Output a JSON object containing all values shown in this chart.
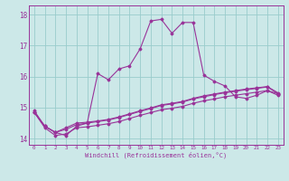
{
  "xlabel": "Windchill (Refroidissement éolien,°C)",
  "x_ticks": [
    "0",
    "1",
    "2",
    "3",
    "4",
    "5",
    "6",
    "7",
    "8",
    "9",
    "10",
    "11",
    "12",
    "13",
    "14",
    "15",
    "16",
    "17",
    "18",
    "19",
    "20",
    "21",
    "22",
    "23"
  ],
  "ylim": [
    13.8,
    18.3
  ],
  "yticks": [
    14,
    15,
    16,
    17,
    18
  ],
  "bg_color": "#cce8e8",
  "grid_color": "#99cccc",
  "line_color": "#993399",
  "series1": [
    14.9,
    14.4,
    14.2,
    14.1,
    14.4,
    14.5,
    16.1,
    15.9,
    16.25,
    16.35,
    16.9,
    17.8,
    17.85,
    17.4,
    17.75,
    17.75,
    16.05,
    15.85,
    15.7,
    15.35,
    15.3,
    15.4,
    15.55,
    15.45
  ],
  "series2": [
    14.85,
    14.4,
    14.2,
    14.3,
    14.45,
    14.5,
    14.55,
    14.6,
    14.68,
    14.78,
    14.88,
    14.97,
    15.07,
    15.12,
    15.18,
    15.28,
    15.35,
    15.42,
    15.48,
    15.53,
    15.58,
    15.62,
    15.67,
    15.45
  ],
  "series3": [
    14.85,
    14.4,
    14.2,
    14.35,
    14.5,
    14.53,
    14.57,
    14.62,
    14.7,
    14.8,
    14.9,
    14.99,
    15.09,
    15.14,
    15.2,
    15.3,
    15.38,
    15.44,
    15.5,
    15.55,
    15.6,
    15.64,
    15.68,
    15.48
  ],
  "series4": [
    14.85,
    14.35,
    14.1,
    14.15,
    14.35,
    14.38,
    14.43,
    14.48,
    14.55,
    14.65,
    14.75,
    14.84,
    14.93,
    14.98,
    15.04,
    15.14,
    15.22,
    15.28,
    15.35,
    15.4,
    15.45,
    15.5,
    15.55,
    15.4
  ]
}
